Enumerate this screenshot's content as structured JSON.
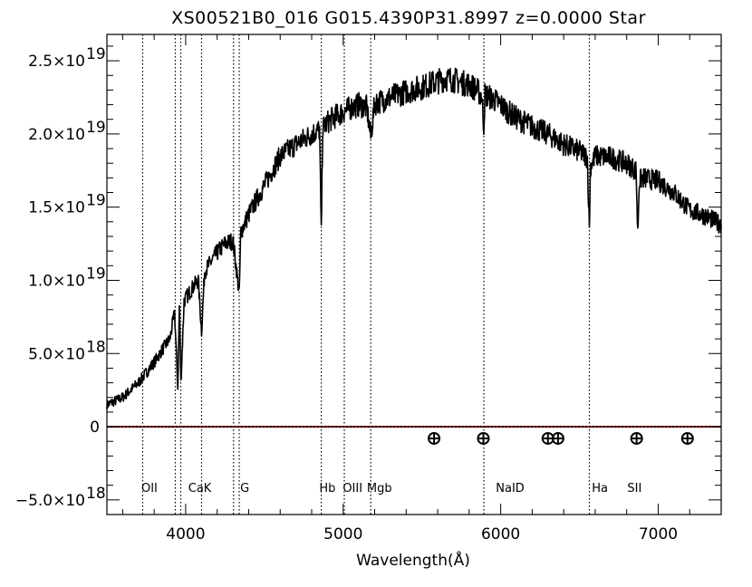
{
  "chart_data": {
    "type": "line",
    "title": "XS00521B0_016 G015.4390P31.8997 z=0.0000   Star",
    "xlabel": "Wavelength(Å)",
    "ylabel": "",
    "xlim": [
      3500,
      7400
    ],
    "ylim": [
      -6e+18,
      2.68e+19
    ],
    "x_ticks": [
      {
        "value": 4000,
        "label": "4000"
      },
      {
        "value": 5000,
        "label": "5000"
      },
      {
        "value": 6000,
        "label": "6000"
      },
      {
        "value": 7000,
        "label": "7000"
      }
    ],
    "y_ticks": [
      {
        "value": -5e+18,
        "mant": "−5.0×10",
        "exp": "18"
      },
      {
        "value": 0,
        "mant": "0",
        "exp": ""
      },
      {
        "value": 5e+18,
        "mant": "5.0×10",
        "exp": "18"
      },
      {
        "value": 1e+19,
        "mant": "1.0×10",
        "exp": "19"
      },
      {
        "value": 1.5e+19,
        "mant": "1.5×10",
        "exp": "19"
      },
      {
        "value": 2e+19,
        "mant": "2.0×10",
        "exp": "19"
      },
      {
        "value": 2.5e+19,
        "mant": "2.5×10",
        "exp": "19"
      }
    ],
    "series": [
      {
        "color": "#000000",
        "x": [
          3500,
          3600,
          3700,
          3800,
          3860,
          3900,
          3930,
          3950,
          3960,
          3970,
          3990,
          4050,
          4080,
          4101,
          4120,
          4200,
          4250,
          4300,
          4320,
          4340,
          4350,
          4400,
          4500,
          4600,
          4700,
          4800,
          4850,
          4861,
          4870,
          4900,
          4950,
          5000,
          5050,
          5100,
          5150,
          5175,
          5200,
          5300,
          5400,
          5500,
          5600,
          5650,
          5700,
          5750,
          5800,
          5850,
          5880,
          5893,
          5900,
          5950,
          6000,
          6050,
          6100,
          6200,
          6300,
          6400,
          6500,
          6550,
          6563,
          6570,
          6600,
          6700,
          6800,
          6860,
          6870,
          6880,
          6900,
          7000,
          7100,
          7150,
          7200,
          7300,
          7400
        ],
        "y": [
          1.5e+18,
          2e+18,
          3e+18,
          4.4e+18,
          5.4e+18,
          6e+18,
          7.8e+18,
          2.6e+18,
          8.2e+18,
          3e+18,
          8.6e+18,
          9.6e+18,
          1e+19,
          6.5e+18,
          1.06e+19,
          1.19e+19,
          1.25e+19,
          1.27e+19,
          1.1e+19,
          9e+18,
          1.33e+19,
          1.45e+19,
          1.65e+19,
          1.85e+19,
          1.93e+19,
          2e+19,
          2.03e+19,
          1.32e+19,
          2.04e+19,
          2.08e+19,
          2.12e+19,
          2.15e+19,
          2.18e+19,
          2.2e+19,
          2.18e+19,
          1.98e+19,
          2.21e+19,
          2.25e+19,
          2.29e+19,
          2.32e+19,
          2.36e+19,
          2.38e+19,
          2.37e+19,
          2.35e+19,
          2.34e+19,
          2.3e+19,
          2.26e+19,
          2.05e+19,
          2.27e+19,
          2.24e+19,
          2.2e+19,
          2.15e+19,
          2.11e+19,
          2.05e+19,
          2e+19,
          1.93e+19,
          1.88e+19,
          1.84e+19,
          1.36e+19,
          1.78e+19,
          1.85e+19,
          1.84e+19,
          1.8e+19,
          1.75e+19,
          1.32e+19,
          1.68e+19,
          1.7e+19,
          1.68e+19,
          1.6e+19,
          1.54e+19,
          1.48e+19,
          1.44e+19,
          1.38e+19
        ]
      },
      {
        "color": "#8b1a1a",
        "style": "dashed",
        "x": [
          3500,
          7400
        ],
        "y": [
          0,
          0
        ]
      }
    ],
    "line_markers": [
      {
        "name": "OII",
        "x": 3727
      },
      {
        "name": "Ca",
        "x": 3934
      },
      {
        "name": "Ca",
        "x": 3969
      },
      {
        "name": "CaK",
        "x": 4101
      },
      {
        "name": "G",
        "x": 4304
      },
      {
        "name": "G",
        "x": 4340
      },
      {
        "name": "Hb",
        "x": 4861
      },
      {
        "name": "OIII",
        "x": 5007
      },
      {
        "name": "Mgb",
        "x": 5175
      },
      {
        "name": "NaID",
        "x": 5893
      },
      {
        "name": "Ha",
        "x": 6563
      }
    ],
    "line_labels": [
      {
        "text": "OII",
        "x": 3770
      },
      {
        "text": "CaK",
        "x": 4090
      },
      {
        "text": "G",
        "x": 4375
      },
      {
        "text": "Hb",
        "x": 4900
      },
      {
        "text": "OIII",
        "x": 5060
      },
      {
        "text": "Mgb",
        "x": 5230
      },
      {
        "text": "NaID",
        "x": 6060
      },
      {
        "text": "Ha",
        "x": 6630
      },
      {
        "text": "SII",
        "x": 6850
      }
    ],
    "telluric_markers": [
      5577,
      5890,
      6300,
      6364,
      6863,
      7186
    ],
    "telluric_y": -8e+17
  }
}
